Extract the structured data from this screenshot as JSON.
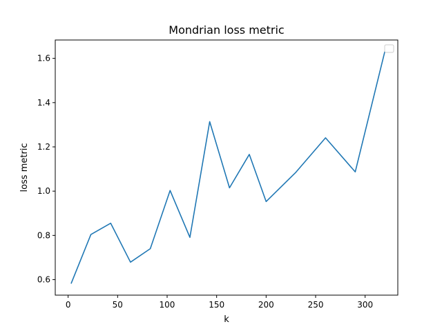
{
  "chart_data": {
    "type": "line",
    "title": "Mondrian loss metric",
    "xlabel": "k",
    "ylabel": "loss metric",
    "xlim": [
      -13,
      333
    ],
    "ylim": [
      0.53,
      1.683
    ],
    "xticks": [
      0,
      50,
      100,
      150,
      200,
      250,
      300
    ],
    "yticks": [
      0.6,
      0.8,
      1.0,
      1.2,
      1.4,
      1.6
    ],
    "xtick_labels": [
      "0",
      "50",
      "100",
      "150",
      "200",
      "250",
      "300"
    ],
    "ytick_labels": [
      "0.6",
      "0.8",
      "1.0",
      "1.2",
      "1.4",
      "1.6"
    ],
    "grid": false,
    "legend": {
      "placement": "top-right",
      "entries": []
    },
    "series": [
      {
        "color": "#1f77b4",
        "x": [
          3,
          23,
          43,
          63,
          83,
          103,
          123,
          143,
          163,
          183,
          200,
          230,
          260,
          290,
          320
        ],
        "y": [
          0.582,
          0.804,
          0.855,
          0.679,
          0.74,
          1.003,
          0.791,
          1.314,
          1.015,
          1.166,
          0.953,
          1.085,
          1.241,
          1.087,
          1.633
        ]
      }
    ]
  }
}
